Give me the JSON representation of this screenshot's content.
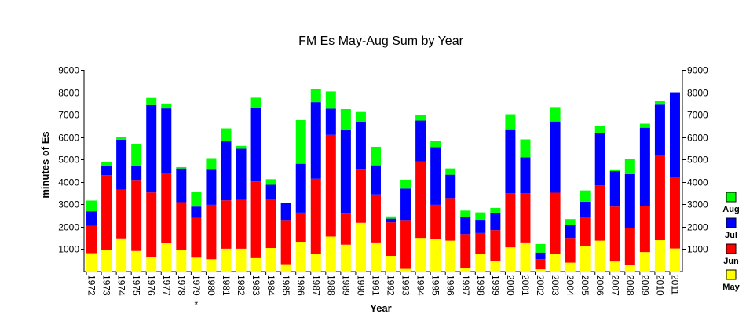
{
  "chart_data": {
    "type": "bar",
    "stacked": true,
    "title": "FM Es May-Aug Sum by Year",
    "xlabel": "Year",
    "ylabel": "minutes of Es",
    "ylim": [
      0,
      9000
    ],
    "yticks": [
      1000,
      2000,
      3000,
      4000,
      5000,
      6000,
      7000,
      8000,
      9000
    ],
    "y_axis_both_sides": true,
    "grid": false,
    "legend": "right",
    "annotation": {
      "text": "*",
      "category": "1979"
    },
    "categories": [
      "1972",
      "1973",
      "1974",
      "1975",
      "1976",
      "1977",
      "1978",
      "1979",
      "1980",
      "1981",
      "1982",
      "1983",
      "1984",
      "1985",
      "1986",
      "1987",
      "1988",
      "1989",
      "1990",
      "1991",
      "1992",
      "1993",
      "1994",
      "1995",
      "1996",
      "1997",
      "1998",
      "1999",
      "2000",
      "2001",
      "2002",
      "2003",
      "2004",
      "2005",
      "2006",
      "2007",
      "2008",
      "2009",
      "2010",
      "2011"
    ],
    "series": [
      {
        "name": "May",
        "color": "#ffff00",
        "values": [
          820,
          980,
          1480,
          920,
          650,
          1280,
          970,
          620,
          550,
          1020,
          1020,
          600,
          1050,
          330,
          1330,
          800,
          1560,
          1200,
          2180,
          1300,
          700,
          120,
          1500,
          1440,
          1380,
          150,
          800,
          480,
          1080,
          1300,
          100,
          800,
          400,
          1120,
          1380,
          450,
          300,
          870,
          1400,
          1030
        ]
      },
      {
        "name": "Jun",
        "color": "#ff0000",
        "values": [
          1230,
          3320,
          2170,
          3170,
          2880,
          3100,
          2130,
          1780,
          2430,
          2160,
          2180,
          3420,
          2180,
          1970,
          1300,
          3340,
          4540,
          1420,
          2400,
          2140,
          1500,
          2180,
          3420,
          1540,
          1900,
          1520,
          920,
          1370,
          2420,
          2200,
          450,
          2720,
          1100,
          1330,
          2470,
          2450,
          1630,
          2050,
          3800,
          3200
        ]
      },
      {
        "name": "Jul",
        "color": "#0000ff",
        "values": [
          640,
          420,
          2240,
          620,
          3900,
          2900,
          1500,
          500,
          1600,
          2630,
          2280,
          3300,
          640,
          770,
          2180,
          3420,
          1170,
          3700,
          2100,
          1300,
          160,
          1400,
          1820,
          2570,
          1040,
          760,
          590,
          780,
          2850,
          1600,
          300,
          3180,
          570,
          670,
          2350,
          1580,
          2420,
          3500,
          2250,
          3770
        ]
      },
      {
        "name": "Aug",
        "color": "#00ff00",
        "values": [
          480,
          180,
          110,
          970,
          320,
          220,
          60,
          650,
          480,
          580,
          130,
          440,
          250,
          0,
          1950,
          590,
          770,
          930,
          440,
          830,
          100,
          400,
          260,
          280,
          280,
          290,
          330,
          210,
          670,
          800,
          380,
          640,
          270,
          500,
          300,
          80,
          690,
          180,
          150,
          0
        ]
      }
    ]
  }
}
